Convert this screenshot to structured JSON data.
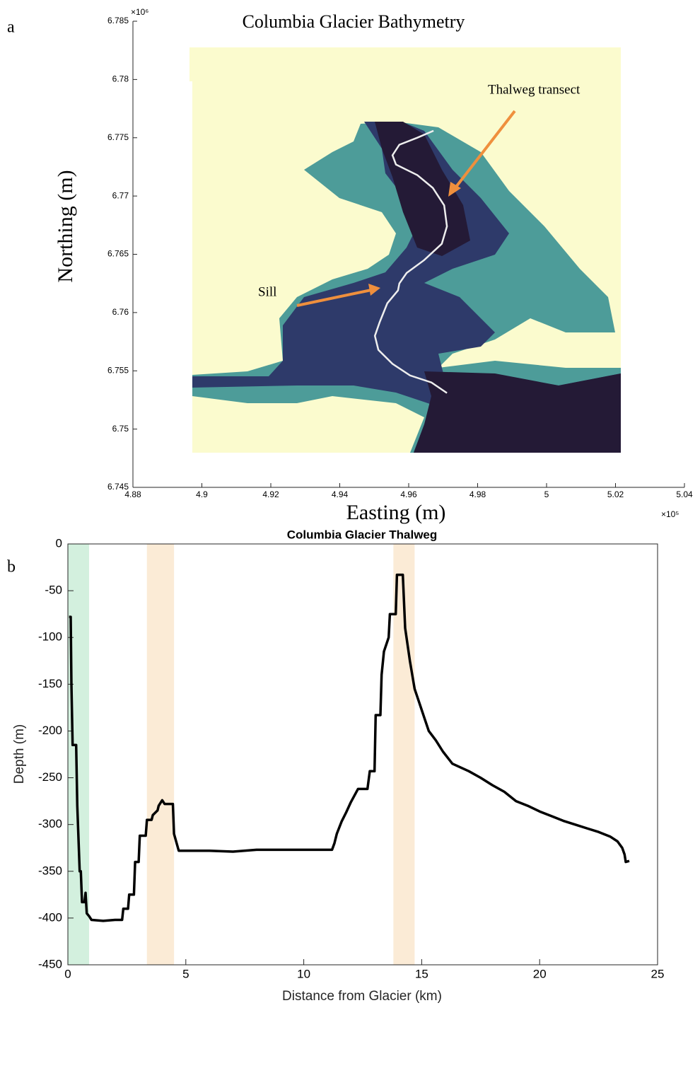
{
  "chart_data": [
    {
      "type": "map",
      "panel": "a",
      "title": "Columbia Glacier Bathymetry",
      "xlabel": "Easting (m)",
      "ylabel": "Northing (m)",
      "x_multiplier": "×10⁵",
      "y_multiplier": "×10⁶",
      "xlim": [
        4.88,
        5.04
      ],
      "xticks": [
        4.88,
        4.9,
        4.92,
        4.94,
        4.96,
        4.98,
        5,
        5.02,
        5.04
      ],
      "ylim": [
        6.745,
        6.785
      ],
      "yticks": [
        6.745,
        6.75,
        6.755,
        6.76,
        6.765,
        6.77,
        6.775,
        6.78,
        6.785
      ],
      "color": "#eeeeee",
      "x": [
        4.9672,
        4.9625,
        4.9573,
        4.9553,
        4.9563,
        4.9625,
        4.967,
        4.9703,
        4.9711,
        4.9696,
        4.9645,
        4.9594,
        4.9573,
        4.9569,
        4.9538,
        4.9516,
        4.9502,
        4.9512,
        4.9553,
        4.9604,
        4.9666,
        4.9711
      ],
      "values": [
        6.7756,
        6.775,
        6.7744,
        6.7735,
        6.7727,
        6.7718,
        6.7707,
        6.7692,
        6.7674,
        6.7659,
        6.7645,
        6.7634,
        6.7625,
        6.7619,
        6.7608,
        6.7592,
        6.758,
        6.7568,
        6.7556,
        6.7546,
        6.754,
        6.7531
      ],
      "annotations": [
        "Thalweg transect",
        "Sill"
      ]
    },
    {
      "type": "line",
      "panel": "b",
      "title": "Columbia Glacier Thalweg",
      "xlabel": "Distance from Glacier (km)",
      "ylabel": "Depth (m)",
      "xlim": [
        0,
        25
      ],
      "xticks": [
        0,
        5,
        10,
        15,
        20,
        25
      ],
      "ylim": [
        -450,
        0
      ],
      "yticks": [
        0,
        -50,
        -100,
        -150,
        -200,
        -250,
        -300,
        -350,
        -400,
        -450
      ],
      "color": "#000000",
      "shaded_regions": [
        {
          "x": [
            0,
            0.9
          ],
          "color": "#d3f0de"
        },
        {
          "x": [
            3.35,
            4.5
          ],
          "color": "#fbebd6"
        },
        {
          "x": [
            13.8,
            14.7
          ],
          "color": "#fbebd6"
        }
      ],
      "x": [
        0.05,
        0.12,
        0.15,
        0.2,
        0.35,
        0.4,
        0.5,
        0.55,
        0.6,
        0.7,
        0.75,
        0.8,
        0.9,
        1.0,
        1.5,
        2.0,
        2.3,
        2.35,
        2.55,
        2.6,
        2.8,
        2.85,
        3.0,
        3.05,
        3.3,
        3.35,
        3.55,
        3.6,
        3.8,
        3.85,
        4.0,
        4.1,
        4.45,
        4.5,
        4.7,
        6,
        7,
        8,
        9,
        10,
        11.2,
        11.3,
        11.4,
        11.6,
        11.8,
        12.0,
        12.3,
        12.7,
        12.8,
        13.0,
        13.05,
        13.25,
        13.3,
        13.4,
        13.6,
        13.65,
        13.9,
        13.95,
        14.2,
        14.3,
        14.5,
        14.7,
        14.9,
        15.1,
        15.3,
        15.6,
        15.9,
        16.3,
        17,
        17.5,
        18,
        18.5,
        19,
        19.5,
        20,
        20.5,
        21,
        21.5,
        22,
        22.5,
        23,
        23.3,
        23.5,
        23.6,
        23.65,
        23.8
      ],
      "values": [
        -78,
        -78,
        -150,
        -215,
        -215,
        -280,
        -350,
        -350,
        -383,
        -383,
        -373,
        -395,
        -398,
        -402,
        -403,
        -402,
        -402,
        -390,
        -390,
        -375,
        -375,
        -340,
        -340,
        -312,
        -312,
        -295,
        -295,
        -290,
        -285,
        -280,
        -274,
        -278,
        -278,
        -310,
        -328,
        -328,
        -329,
        -327,
        -327,
        -327,
        -327,
        -320,
        -310,
        -297,
        -287,
        -276,
        -262,
        -262,
        -243,
        -243,
        -183,
        -183,
        -140,
        -115,
        -100,
        -75,
        -75,
        -33,
        -33,
        -90,
        -125,
        -155,
        -170,
        -185,
        -200,
        -210,
        -222,
        -235,
        -243,
        -250,
        -258,
        -265,
        -275,
        -280,
        -286,
        -291,
        -296,
        -300,
        -304,
        -308,
        -313,
        -318,
        -325,
        -332,
        -340,
        -339
      ]
    }
  ]
}
